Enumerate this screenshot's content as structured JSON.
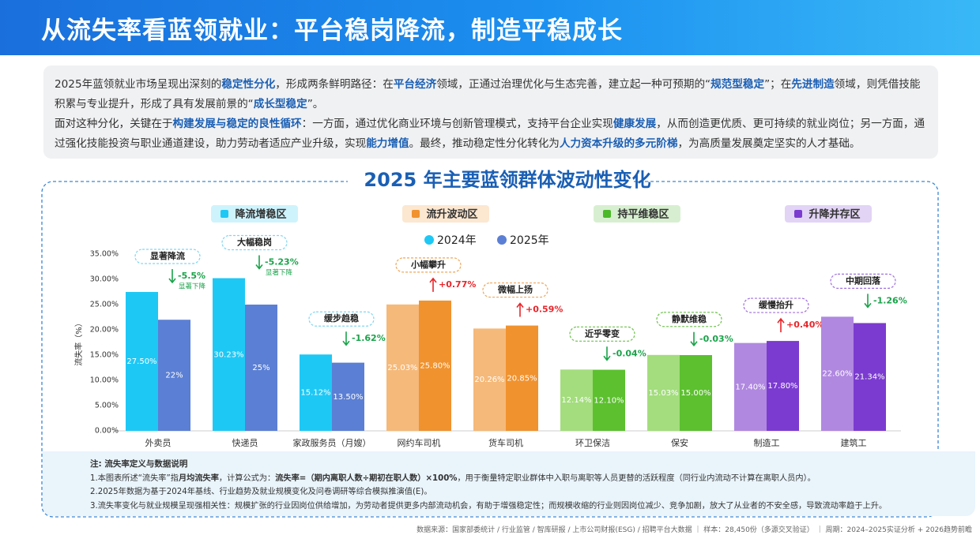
{
  "header": {
    "title": "从流失率看蓝领就业：平台稳岗降流，制造平稳成长"
  },
  "intro": {
    "paragraphs": [
      [
        {
          "text": "2025年蓝领就业市场呈现出深刻的"
        },
        {
          "text": "稳定性分化",
          "strong": true
        },
        {
          "text": "，形成两条鲜明路径：在"
        },
        {
          "text": "平台经济",
          "strong": true
        },
        {
          "text": "领域，正通过治理优化与生态完善，建立起一种可预期的“"
        },
        {
          "text": "规范型稳定",
          "strong": true
        },
        {
          "text": "”；在"
        },
        {
          "text": "先进制造",
          "strong": true
        },
        {
          "text": "领域，则凭借技能积累与专业提升，形成了具有发展前景的“"
        },
        {
          "text": "成长型稳定",
          "strong": true
        },
        {
          "text": "”。"
        }
      ],
      [
        {
          "text": "面对这种分化，关键在于"
        },
        {
          "text": "构建发展与稳定的良性循环",
          "strong": true
        },
        {
          "text": "：一方面，通过优化商业环境与创新管理模式，支持平台企业实现"
        },
        {
          "text": "健康发展",
          "strong": true
        },
        {
          "text": "，从而创造更优质、更可持续的就业岗位；另一方面，通过强化技能投资与职业通道建设，助力劳动者适应产业升级，实现"
        },
        {
          "text": "能力增值",
          "strong": true
        },
        {
          "text": "。最终，推动稳定性分化转化为"
        },
        {
          "text": "人力资本升级的多元阶梯",
          "strong": true
        },
        {
          "text": "，为高质量发展奠定坚实的人才基础。"
        }
      ]
    ]
  },
  "chart_data": {
    "type": "bar",
    "title": "2025 年主要蓝领群体波动性变化",
    "y_label": "流失率（%）",
    "zones": [
      {
        "name": "降流增稳区",
        "color": "#1ec8f5"
      },
      {
        "name": "流升波动区",
        "color": "#f0922e"
      },
      {
        "name": "持平维稳区",
        "color": "#4bb82a"
      },
      {
        "name": "升降并存区",
        "color": "#7b3bd0"
      }
    ],
    "categories": [
      "外卖员",
      "快递员",
      "家政服务员（月嫂）",
      "网约车司机",
      "货车司机",
      "环卫保洁",
      "保安",
      "制造工",
      "建筑工"
    ],
    "series": [
      {
        "name": "2024年",
        "color": "#1ec8f5",
        "colors": [
          "#1ec8f5",
          "#1ec8f5",
          "#1ec8f5",
          "#f5b97a",
          "#f5b97a",
          "#a3dd7d",
          "#a3dd7d",
          "#b088e0",
          "#b088e0"
        ],
        "values": [
          27.5,
          30.23,
          15.12,
          25.03,
          20.26,
          12.14,
          15.03,
          17.4,
          22.6
        ],
        "value_labels": [
          "27.50%",
          "30.23%",
          "15.12%",
          "25.03%",
          "20.26%",
          "12.14%",
          "15.03%",
          "17.40%",
          "22.60%"
        ]
      },
      {
        "name": "2025年",
        "color": "#5b7fd4",
        "colors": [
          "#5b7fd4",
          "#5b7fd4",
          "#5b7fd4",
          "#f0922e",
          "#f0922e",
          "#5cc02f",
          "#5cc02f",
          "#7b3bd0",
          "#7b3bd0"
        ],
        "values": [
          22,
          25,
          13.5,
          25.8,
          20.85,
          12.1,
          15,
          17.8,
          21.34
        ],
        "value_labels": [
          "22%",
          "25%",
          "13.50%",
          "25.80%",
          "20.85%",
          "12.10%",
          "15.00%",
          "17.80%",
          "21.34%"
        ]
      }
    ],
    "tags": [
      "显著降流",
      "大幅稳岗",
      "缓步趋稳",
      "小幅攀升",
      "微幅上扬",
      "近乎零变",
      "静默维稳",
      "缓慢抬升",
      "中期回落"
    ],
    "tag_colors": [
      "#7fd6f2",
      "#7fd6f2",
      "#7fd6f2",
      "#f0a65a",
      "#f0a65a",
      "#6cc04a",
      "#6cc04a",
      "#a070dd",
      "#a070dd"
    ],
    "changes": [
      -5.5,
      -5.23,
      -1.62,
      0.77,
      0.59,
      -0.04,
      -0.03,
      0.4,
      -1.26
    ],
    "change_labels": [
      "-5.5%",
      "-5.23%",
      "-1.62%",
      "+0.77%",
      "+0.59%",
      "-0.04%",
      "-0.03%",
      "+0.40%",
      "-1.26%"
    ],
    "change_notes": [
      "显著下降",
      "显著下降",
      null,
      null,
      null,
      null,
      null,
      null,
      null
    ],
    "up_color": "#e8262a",
    "down_color": "#1aa34a",
    "ylim": [
      0,
      35
    ],
    "yticks": [
      {
        "value": 0,
        "label": "0.00%"
      },
      {
        "value": 5,
        "label": "5.00%"
      },
      {
        "value": 10,
        "label": "10.00%"
      },
      {
        "value": 15,
        "label": "15.00%"
      },
      {
        "value": 20,
        "label": "20.00%"
      },
      {
        "value": 25,
        "label": "25.00%"
      },
      {
        "value": 30,
        "label": "30.00%"
      },
      {
        "value": 35,
        "label": "35.00%"
      }
    ],
    "grid": false
  },
  "notes": {
    "title": "注: 流失率定义与数据说明",
    "lines": [
      [
        {
          "text": "1.本图表所述“流失率”指"
        },
        {
          "text": "月均流失率",
          "strong": true
        },
        {
          "text": "，计算公式为："
        },
        {
          "text": "流失率=（期内离职人数÷期初在职人数）×100%",
          "strong": true
        },
        {
          "text": "，用于衡量特定职业群体中入职与离职等人员更替的活跃程度（同行业内流动不计算在离职人员内）。"
        }
      ],
      [
        {
          "text": "2.2025年数据为基于2024年基线、行业趋势及就业规模变化及问卷调研等综合模拟推演值(E)。"
        }
      ],
      [
        {
          "text": "3.流失率变化与就业规模呈现强相关性：规模扩张的行业因岗位供给增加，为劳动者提供更多内部流动机会，有助于增强稳定性；而规模收缩的行业则因岗位减少、竞争加剧，放大了从业者的不安全感，导致流动率趋于上升。"
        }
      ]
    ]
  },
  "footer": {
    "source": "数据来源：国家部委统计 / 行业监管 / 智库研报 / 上市公司财报(ESG) / 招聘平台大数据 ｜ 样本：28,450份（多源交叉验证） ｜ 周期：2024–2025实证分析 + 2026趋势前瞻"
  }
}
